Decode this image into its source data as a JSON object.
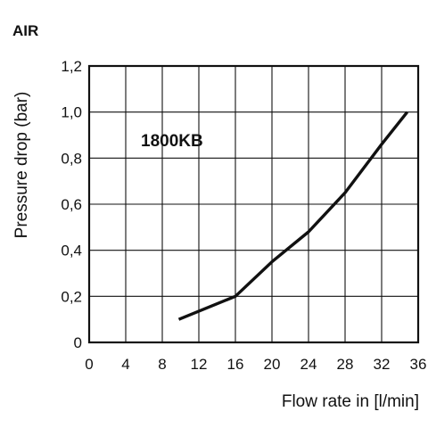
{
  "chart_data": {
    "type": "line",
    "title": "AIR",
    "xlabel": "Flow rate in [l/min]",
    "ylabel": "Pressure drop (bar)",
    "xlim": [
      0,
      36
    ],
    "ylim": [
      0,
      1.2
    ],
    "grid": true,
    "x_ticks": [
      {
        "value": 0,
        "label": "0"
      },
      {
        "value": 4,
        "label": "4"
      },
      {
        "value": 8,
        "label": "8"
      },
      {
        "value": 12,
        "label": "12"
      },
      {
        "value": 16,
        "label": "16"
      },
      {
        "value": 20,
        "label": "20"
      },
      {
        "value": 24,
        "label": "24"
      },
      {
        "value": 28,
        "label": "28"
      },
      {
        "value": 32,
        "label": "32"
      },
      {
        "value": 36,
        "label": "36"
      }
    ],
    "y_ticks": [
      {
        "value": 0,
        "label": "0"
      },
      {
        "value": 0.2,
        "label": "0,2"
      },
      {
        "value": 0.4,
        "label": "0,4"
      },
      {
        "value": 0.6,
        "label": "0,6"
      },
      {
        "value": 0.8,
        "label": "0,8"
      },
      {
        "value": 1.0,
        "label": "1,0"
      },
      {
        "value": 1.2,
        "label": "1,2"
      }
    ],
    "annotation": "1800KB",
    "series": [
      {
        "x": [
          9.8,
          16,
          20,
          24,
          28,
          32,
          34.8
        ],
        "y": [
          0.1,
          0.2,
          0.35,
          0.48,
          0.65,
          0.86,
          1.0
        ]
      }
    ],
    "colors": {
      "line": "#111111",
      "grid": "#111111"
    }
  }
}
